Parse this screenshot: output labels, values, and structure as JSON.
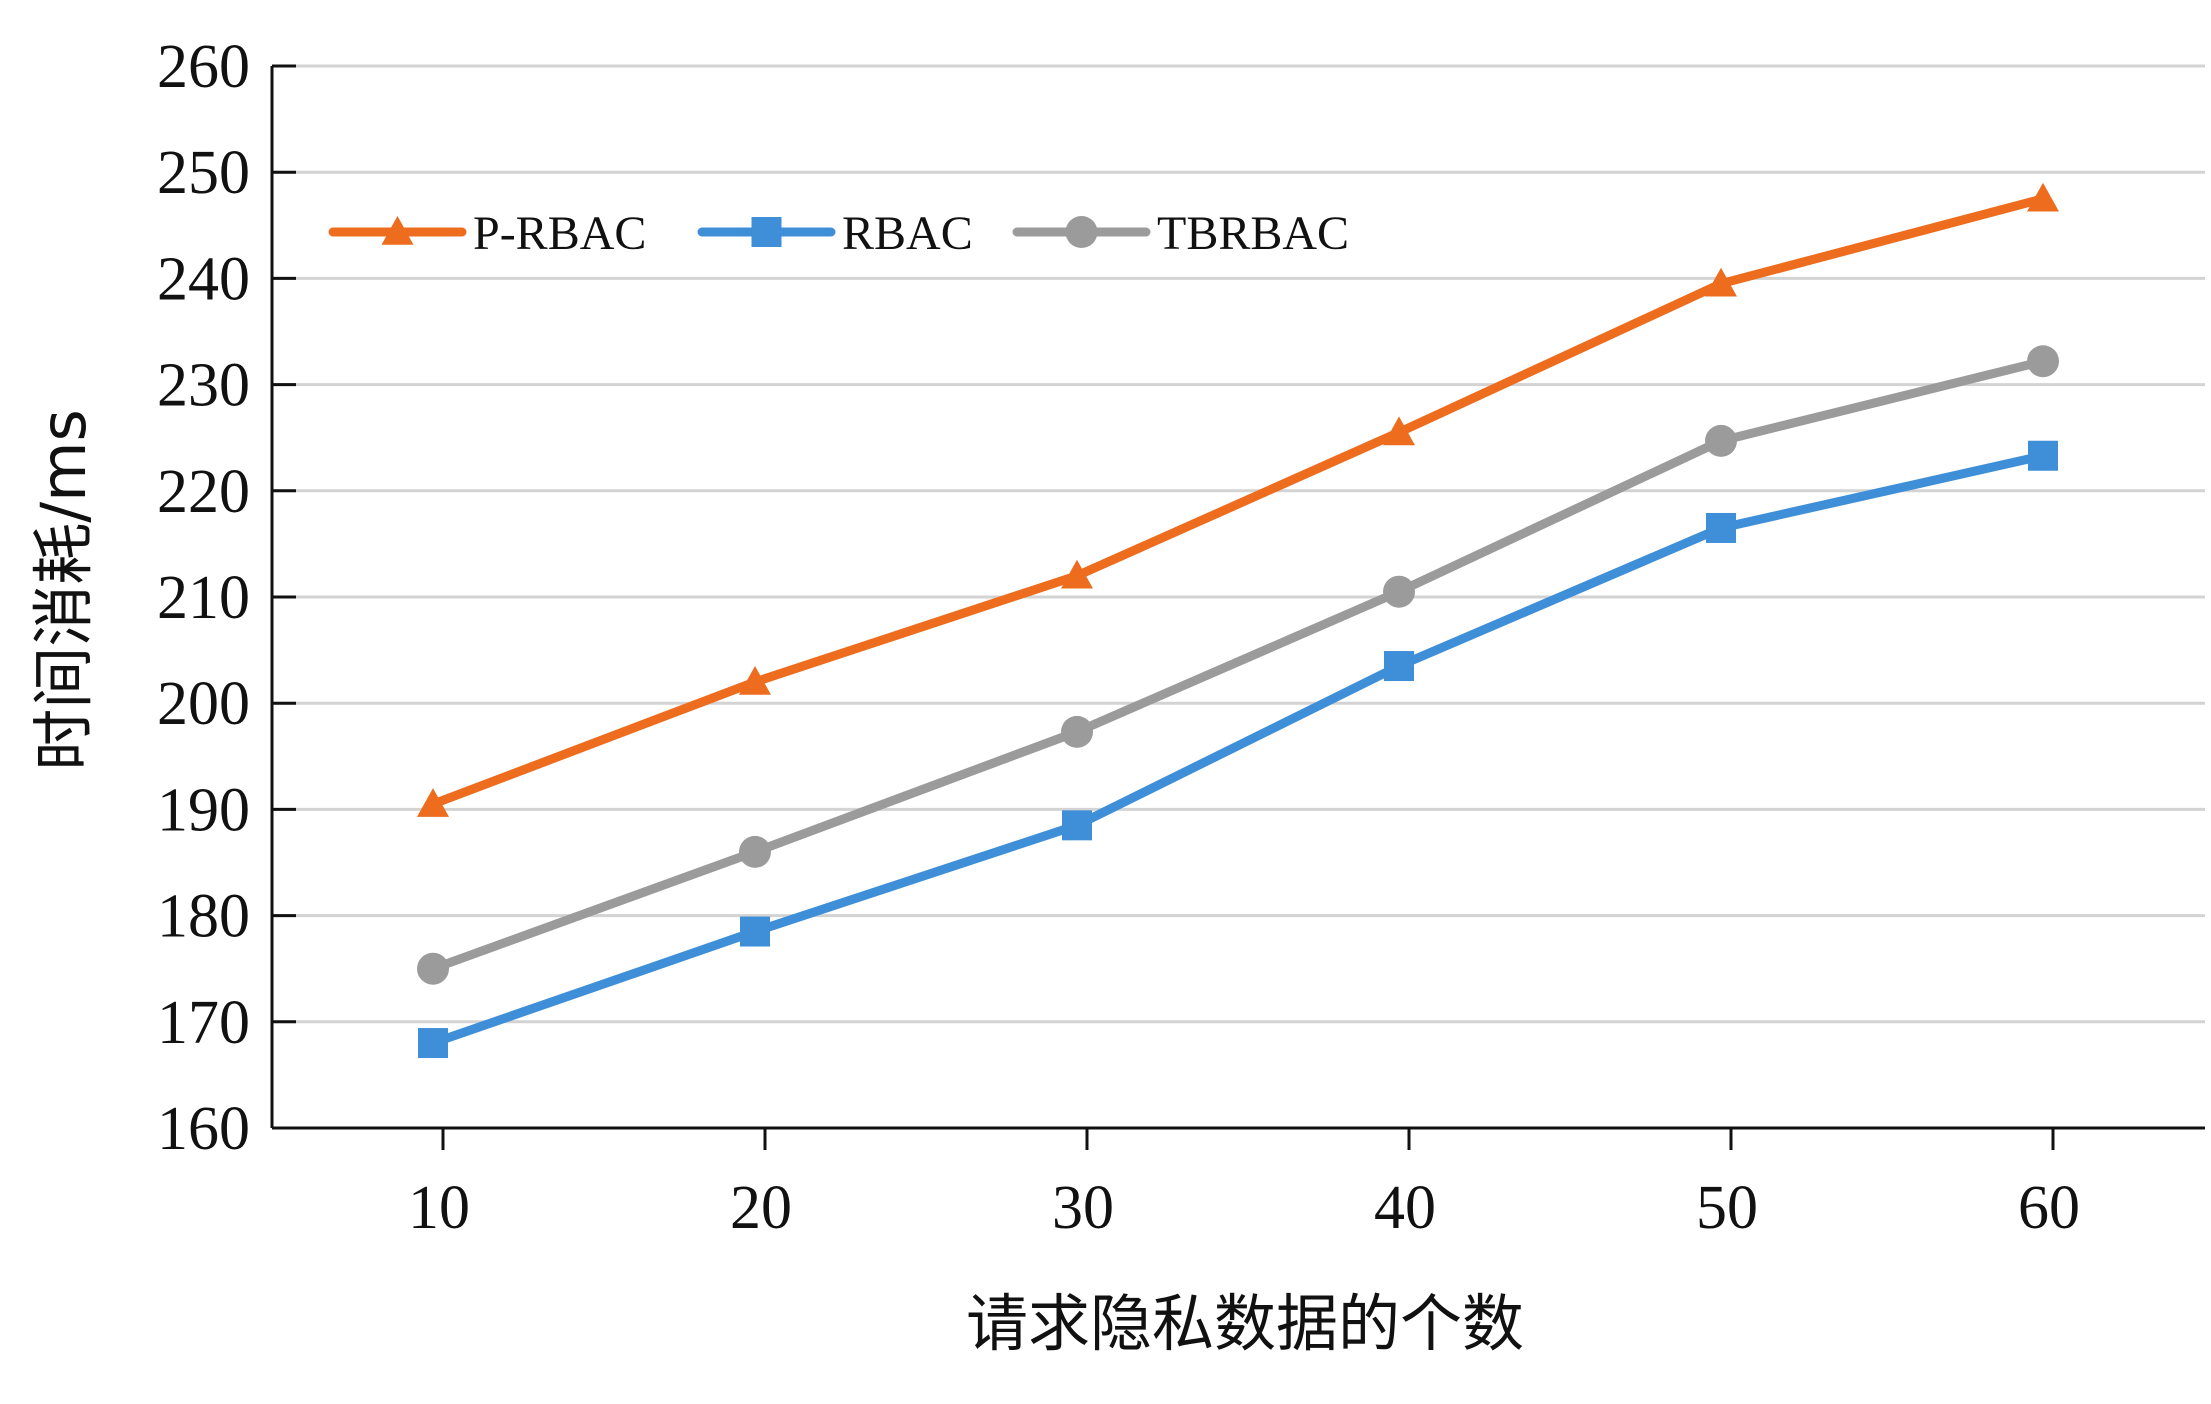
{
  "chart_data": {
    "type": "line",
    "title": "",
    "xlabel": "请求隐私数据的个数",
    "ylabel": "时间消耗/ms",
    "x": [
      10,
      20,
      30,
      40,
      50,
      60
    ],
    "ylim": [
      160,
      260
    ],
    "yticks": [
      160,
      170,
      180,
      190,
      200,
      210,
      220,
      230,
      240,
      250,
      260
    ],
    "grid": true,
    "legend_position": "top-left",
    "series": [
      {
        "name": "P-RBAC",
        "values": [
          190.5,
          202.0,
          212.0,
          225.5,
          239.5,
          247.5
        ],
        "color": "#ED6C1E",
        "marker": "triangle"
      },
      {
        "name": "RBAC",
        "values": [
          168.0,
          178.5,
          188.5,
          203.5,
          216.5,
          223.3
        ],
        "color": "#3F8FD8",
        "marker": "square"
      },
      {
        "name": "TBRBAC",
        "values": [
          175.0,
          186.0,
          197.3,
          210.5,
          224.7,
          232.2
        ],
        "color": "#9B9B9B",
        "marker": "circle"
      }
    ]
  }
}
